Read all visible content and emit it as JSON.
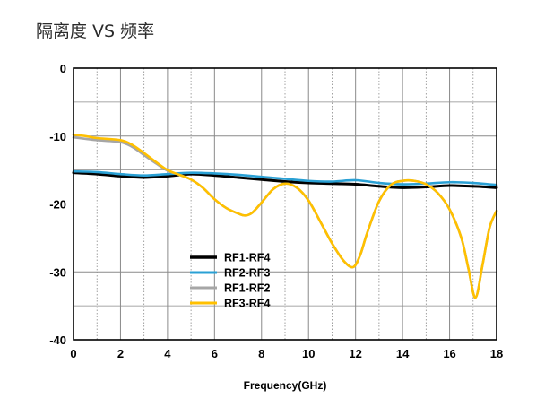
{
  "chart_data": {
    "type": "line",
    "title": "隔离度 VS 频率",
    "xlabel": "Frequency(GHz)",
    "ylabel": "",
    "xlim": [
      0,
      18
    ],
    "ylim": [
      -40,
      0
    ],
    "xticks": [
      0,
      2,
      4,
      6,
      8,
      10,
      12,
      14,
      16,
      18
    ],
    "yticks": [
      0,
      -10,
      -20,
      -30,
      -40
    ],
    "grid": true,
    "legend_position": "lower-left",
    "series": [
      {
        "name": "RF1-RF4",
        "color": "#000000",
        "x": [
          0,
          1,
          2,
          3,
          4,
          5,
          6,
          7,
          8,
          9,
          10,
          11,
          12,
          13,
          14,
          15,
          16,
          17,
          18
        ],
        "y": [
          -15.4,
          -15.6,
          -15.9,
          -16.1,
          -15.9,
          -15.6,
          -15.8,
          -16.1,
          -16.4,
          -16.7,
          -16.9,
          -17.0,
          -17.1,
          -17.4,
          -17.6,
          -17.5,
          -17.3,
          -17.4,
          -17.6
        ]
      },
      {
        "name": "RF2-RF3",
        "color": "#2aa0d4",
        "x": [
          0,
          1,
          2,
          3,
          4,
          5,
          6,
          7,
          8,
          9,
          10,
          11,
          12,
          13,
          14,
          15,
          16,
          17,
          18
        ],
        "y": [
          -15.2,
          -15.3,
          -15.6,
          -15.8,
          -15.6,
          -15.4,
          -15.5,
          -15.7,
          -16.0,
          -16.3,
          -16.6,
          -16.7,
          -16.5,
          -16.9,
          -17.1,
          -17.0,
          -16.8,
          -16.9,
          -17.2
        ]
      },
      {
        "name": "RF1-RF2",
        "color": "#a6a6a6",
        "x": [
          0,
          0.5,
          1,
          2,
          2.5,
          3,
          3.5,
          4,
          4.5,
          5,
          5.5,
          6,
          6.5,
          7,
          7.3,
          7.6,
          8,
          8.5,
          9,
          9.5,
          10,
          10.5,
          11,
          11.5,
          11.9,
          12.2,
          12.5,
          13,
          13.5,
          14,
          14.5,
          15,
          15.5,
          16,
          16.5,
          16.8,
          17.1,
          17.4,
          17.7,
          18
        ],
        "y": [
          -10.2,
          -10.4,
          -10.6,
          -10.9,
          -11.6,
          -12.8,
          -14.0,
          -15.1,
          -15.7,
          -16.4,
          -17.6,
          -19.3,
          -20.6,
          -21.4,
          -21.7,
          -21.3,
          -19.8,
          -17.8,
          -17.0,
          -17.6,
          -19.5,
          -22.6,
          -25.8,
          -28.4,
          -29.3,
          -27.5,
          -24.2,
          -19.6,
          -17.2,
          -16.6,
          -16.6,
          -17.1,
          -18.4,
          -20.8,
          -25.0,
          -29.5,
          -33.8,
          -29.0,
          -23.5,
          -21.0
        ]
      },
      {
        "name": "RF3-RF4",
        "color": "#ffc000",
        "x": [
          0,
          0.5,
          1,
          2,
          2.5,
          3,
          3.5,
          4,
          4.5,
          5,
          5.5,
          6,
          6.5,
          7,
          7.3,
          7.6,
          8,
          8.5,
          9,
          9.5,
          10,
          10.5,
          11,
          11.5,
          11.9,
          12.2,
          12.5,
          13,
          13.5,
          14,
          14.5,
          15,
          15.5,
          16,
          16.5,
          16.8,
          17.1,
          17.4,
          17.7,
          18
        ],
        "y": [
          -9.8,
          -10.0,
          -10.3,
          -10.6,
          -11.3,
          -12.5,
          -13.8,
          -15.0,
          -15.7,
          -16.4,
          -17.6,
          -19.3,
          -20.6,
          -21.4,
          -21.7,
          -21.3,
          -19.8,
          -17.8,
          -17.0,
          -17.6,
          -19.5,
          -22.6,
          -25.8,
          -28.4,
          -29.3,
          -27.5,
          -24.2,
          -19.6,
          -17.2,
          -16.6,
          -16.6,
          -17.1,
          -18.4,
          -20.8,
          -25.0,
          -29.5,
          -33.8,
          -29.0,
          -23.5,
          -21.0
        ]
      }
    ]
  }
}
